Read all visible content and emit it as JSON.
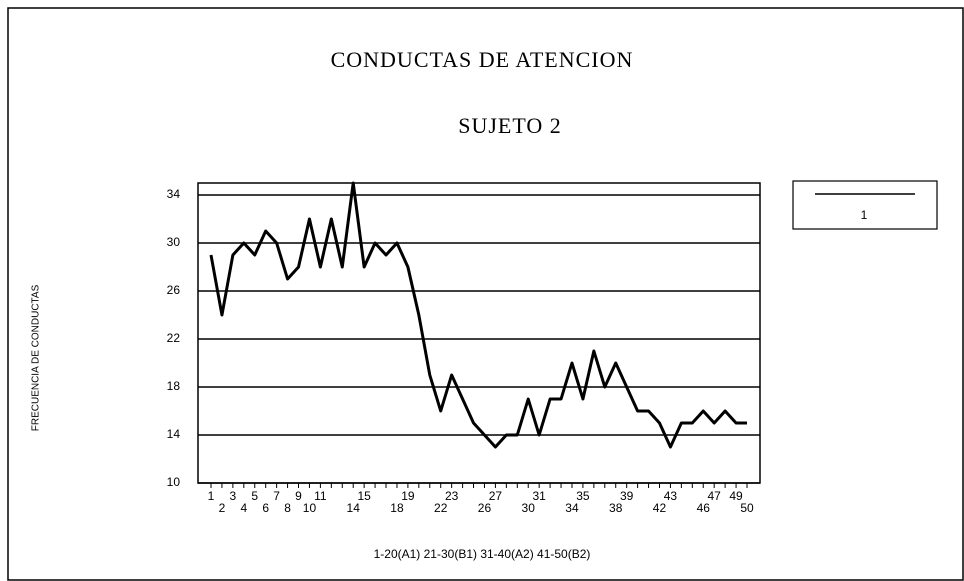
{
  "chart_data": {
    "type": "line",
    "title": "CONDUCTAS DE ATENCION",
    "subtitle": "SUJETO 2",
    "y_label": "FRECUENCIA DE CONDUCTAS",
    "x_label": "1-20(A1) 21-30(B1) 31-40(A2) 41-50(B2)",
    "categories": [
      "1",
      "2",
      "3",
      "4",
      "5",
      "6",
      "7",
      "8",
      "9",
      "10",
      "11",
      null,
      null,
      "14",
      "15",
      null,
      null,
      "18",
      "19",
      null,
      null,
      "22",
      "23",
      null,
      null,
      "26",
      "27",
      null,
      null,
      "30",
      "31",
      null,
      null,
      "34",
      "35",
      null,
      null,
      "38",
      "39",
      null,
      null,
      "42",
      "43",
      null,
      null,
      "46",
      "47",
      null,
      "49",
      "50"
    ],
    "series": [
      {
        "name": "1",
        "color": "#000000",
        "values": [
          29,
          24,
          29,
          30,
          29,
          31,
          30,
          27,
          28,
          32,
          28,
          32,
          28,
          35,
          28,
          30,
          29,
          30,
          28,
          24,
          19,
          16,
          19,
          17,
          15,
          14,
          13,
          14,
          14,
          17,
          14,
          17,
          17,
          20,
          17,
          21,
          18,
          20,
          18,
          16,
          16,
          15,
          13,
          15,
          15,
          16,
          15,
          16,
          15,
          15
        ]
      }
    ],
    "ylim": [
      10,
      35
    ],
    "yticks": [
      10,
      14,
      18,
      22,
      26,
      30,
      34
    ],
    "grid": true,
    "legend": "right"
  }
}
